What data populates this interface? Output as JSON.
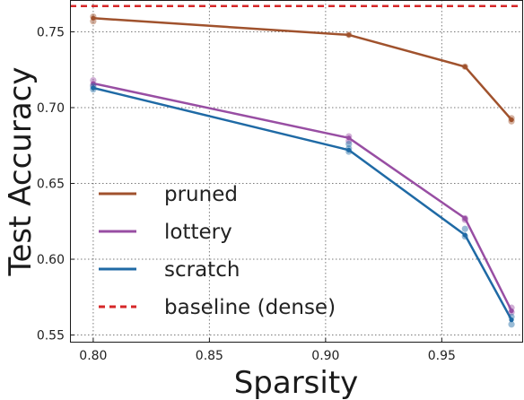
{
  "chart_data": {
    "type": "line",
    "xlabel": "Sparsity",
    "ylabel": "Test Accuracy",
    "xlim": [
      0.79,
      0.985
    ],
    "ylim": [
      0.545,
      0.771
    ],
    "x_ticks": [
      "0.80",
      "0.85",
      "0.90",
      "0.95"
    ],
    "y_ticks": [
      "0.55",
      "0.60",
      "0.65",
      "0.70",
      "0.75"
    ],
    "grid": true,
    "legend_position": "lower-left",
    "series": [
      {
        "name": "pruned",
        "color": "#a0522d",
        "x": [
          0.8,
          0.91,
          0.96,
          0.98
        ],
        "y": [
          0.759,
          0.748,
          0.727,
          0.692
        ],
        "runs": [
          [
            0.8,
            0.76
          ],
          [
            0.8,
            0.757
          ],
          [
            0.91,
            0.748
          ],
          [
            0.96,
            0.727
          ],
          [
            0.98,
            0.693
          ],
          [
            0.98,
            0.691
          ]
        ]
      },
      {
        "name": "lottery",
        "color": "#984ea3",
        "x": [
          0.8,
          0.91,
          0.96,
          0.98
        ],
        "y": [
          0.716,
          0.68,
          0.627,
          0.566
        ],
        "runs": [
          [
            0.8,
            0.718
          ],
          [
            0.8,
            0.715
          ],
          [
            0.91,
            0.681
          ],
          [
            0.91,
            0.678
          ],
          [
            0.96,
            0.627
          ],
          [
            0.96,
            0.626
          ],
          [
            0.98,
            0.568
          ],
          [
            0.98,
            0.565
          ]
        ]
      },
      {
        "name": "scratch",
        "color": "#1f6aa5",
        "x": [
          0.8,
          0.91,
          0.96,
          0.98
        ],
        "y": [
          0.713,
          0.672,
          0.616,
          0.56
        ],
        "runs": [
          [
            0.8,
            0.714
          ],
          [
            0.8,
            0.712
          ],
          [
            0.91,
            0.676
          ],
          [
            0.91,
            0.673
          ],
          [
            0.91,
            0.671
          ],
          [
            0.96,
            0.62
          ],
          [
            0.96,
            0.615
          ],
          [
            0.98,
            0.562
          ],
          [
            0.98,
            0.557
          ]
        ]
      }
    ],
    "reference_lines": [
      {
        "name": "baseline (dense)",
        "color": "#d62728",
        "y": 0.767,
        "style": "dashed"
      }
    ]
  }
}
